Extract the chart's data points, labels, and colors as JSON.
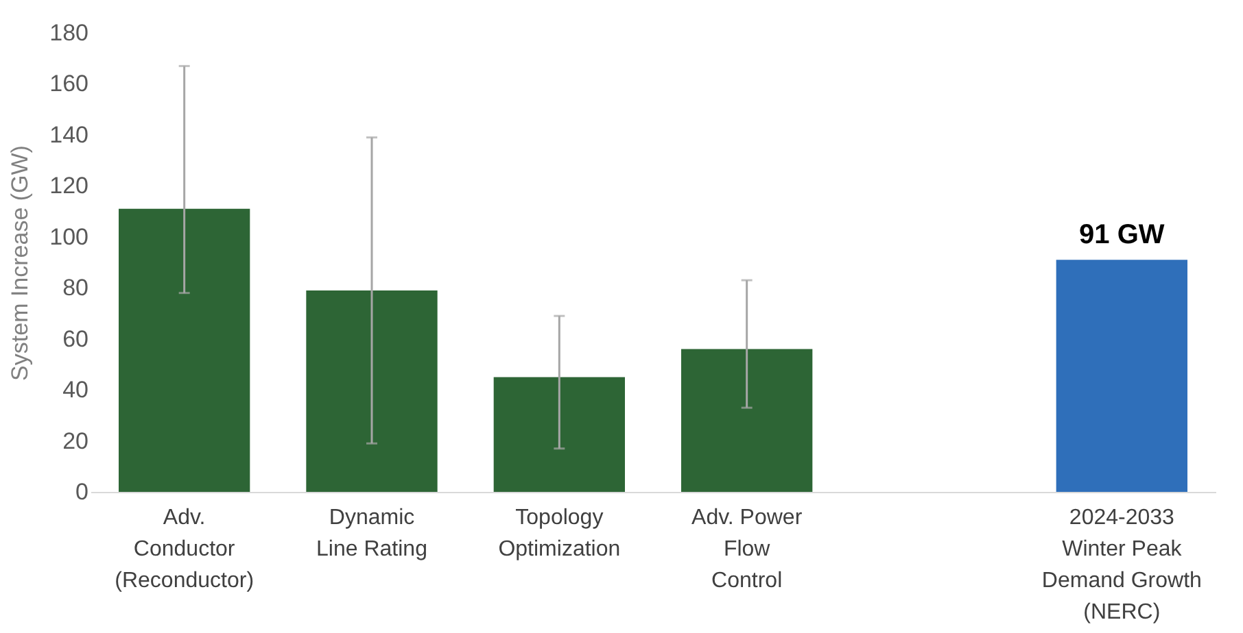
{
  "chart_data": {
    "type": "bar",
    "ylabel": "System Increase (GW)",
    "categories": [
      "Adv.\nConductor\n(Reconductor)",
      "Dynamic\nLine Rating",
      "Topology\nOptimization",
      "Adv. Power\nFlow\nControl",
      null,
      "2024-2033\nWinter Peak\nDemand Growth\n(NERC)"
    ],
    "values": [
      111,
      79,
      45,
      56,
      null,
      91
    ],
    "colors": [
      "#2d6535",
      "#2d6535",
      "#2d6535",
      "#2d6535",
      "#2d6535",
      "#2f6fba"
    ],
    "errors": [
      [
        78,
        167
      ],
      [
        19,
        139
      ],
      [
        17,
        69
      ],
      [
        33,
        83
      ],
      null,
      null
    ],
    "value_labels": [
      null,
      null,
      null,
      null,
      null,
      "91 GW"
    ],
    "ylim": [
      0,
      180
    ],
    "yticks": [
      0,
      20,
      40,
      60,
      80,
      100,
      120,
      140,
      160,
      180
    ],
    "grid": false
  }
}
